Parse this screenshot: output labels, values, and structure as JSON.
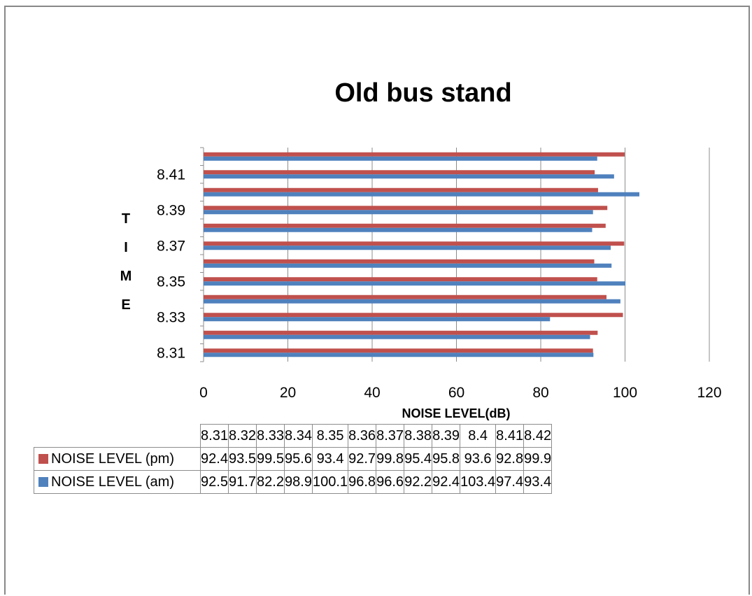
{
  "chart_data": {
    "type": "bar",
    "orientation": "horizontal",
    "title": "Old bus stand",
    "xlabel": "NOISE LEVEL(dB)",
    "ylabel": "TIME",
    "xlim": [
      0,
      120
    ],
    "x_ticks": [
      0,
      20,
      40,
      60,
      80,
      100,
      120
    ],
    "grid": "vertical",
    "categories": [
      "8.31",
      "8.32",
      "8.33",
      "8.34",
      "8.35",
      "8.36",
      "8.37",
      "8.38",
      "8.39",
      "8.4",
      "8.41",
      "8.42"
    ],
    "y_tick_labels": [
      "8.31",
      "8.33",
      "8.35",
      "8.37",
      "8.39",
      "8.41"
    ],
    "series": [
      {
        "name": "NOISE LEVEL (pm)",
        "color": "#c0504d",
        "values": [
          92.4,
          93.5,
          99.5,
          95.6,
          93.4,
          92.7,
          99.8,
          95.4,
          95.8,
          93.6,
          92.8,
          99.9
        ]
      },
      {
        "name": "NOISE LEVEL (am)",
        "color": "#4f81bd",
        "values": [
          92.5,
          91.7,
          82.2,
          98.9,
          100.1,
          96.8,
          96.6,
          92.2,
          92.4,
          103.4,
          97.4,
          93.4
        ]
      }
    ],
    "legend": "data-table"
  }
}
